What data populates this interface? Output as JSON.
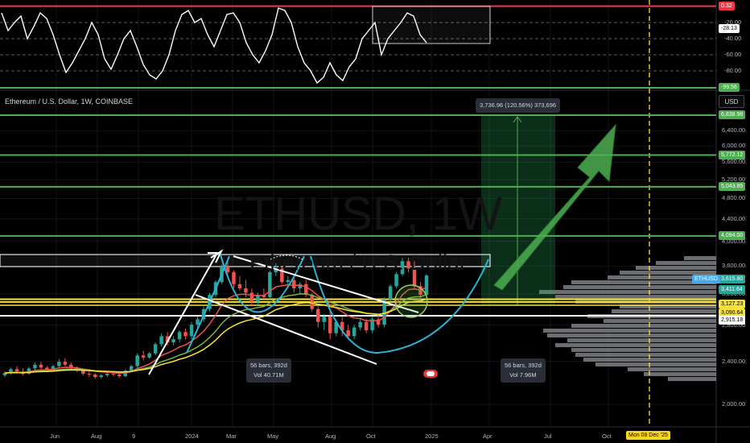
{
  "symbol_title": "Ethereum / U.S. Dollar, 1W, COINBASE",
  "currency": "USD",
  "watermark_ticker": "ETHUSD, 1W",
  "watermark_description": "Ethereum / U.S. Dollar",
  "measure_label": "3,736.96 (120.56%) 373,696",
  "range_box_left": "56 bars, 392d\nVol 40.71M",
  "range_box_right": "56 bars, 392d\nVol 7.96M",
  "crosshair_date": "Mon 08 Dec '25",
  "colors": {
    "up": "#26a69a",
    "down": "#ef5350",
    "green_line": "#4caf50",
    "yellow": "#f7e13a",
    "cyan": "#29b6d6",
    "red_line": "#f23645"
  },
  "chart_data": [
    {
      "type": "line",
      "name": "oscillator",
      "y_ticks": [
        -20,
        -40,
        -60,
        -80
      ],
      "y_tick_labels": [
        "-20.00",
        "-40.00",
        "-60.00",
        "-80.00"
      ],
      "ylim": [
        -100,
        0
      ],
      "levels": [
        {
          "value": 0.32,
          "label": "0.32",
          "color": "#f23645"
        },
        {
          "value": -99.56,
          "label": "-99.56",
          "color": "#4caf50"
        }
      ],
      "current": {
        "value": -28.13,
        "label": "-28.13"
      },
      "values": [
        -8,
        -30,
        -20,
        -12,
        -40,
        -25,
        -8,
        -15,
        -35,
        -60,
        -82,
        -70,
        -55,
        -40,
        -20,
        -35,
        -65,
        -78,
        -60,
        -40,
        -30,
        -50,
        -72,
        -85,
        -90,
        -80,
        -60,
        -30,
        -10,
        -5,
        -20,
        -15,
        -35,
        -50,
        -30,
        -10,
        -8,
        -20,
        -45,
        -60,
        -70,
        -55,
        -35,
        -2,
        -5,
        -20,
        -50,
        -70,
        -80,
        -95,
        -88,
        -70,
        -85,
        -92,
        -75,
        -65,
        -40,
        -30,
        -20,
        -60,
        -40,
        -30,
        -20,
        -8,
        -12,
        -35,
        -45
      ]
    },
    {
      "type": "candlestick",
      "name": "ETHUSD",
      "y_scale": "log",
      "y_tick_labels": [
        "6,400.00",
        "6,000.00",
        "5,600.00",
        "5,200.00",
        "4,800.00",
        "4,400.00",
        "4,000.00",
        "3,600.00",
        "3,200.00",
        "2,800.00",
        "2,400.00",
        "2,000.00"
      ],
      "y_tick_values": [
        6400,
        6000,
        5600,
        5200,
        4800,
        4400,
        4000,
        3600,
        3200,
        2800,
        2400,
        2000
      ],
      "ylim": [
        1750,
        7700
      ],
      "x_labels": [
        "Jun",
        "Aug",
        "9",
        "2024",
        "Mar",
        "May",
        "Aug",
        "Oct",
        "2025",
        "Apr",
        "Jul",
        "Oct"
      ],
      "horizontal_levels": [
        {
          "value": 6838.98,
          "label": "6,838.98",
          "color": "#4caf50"
        },
        {
          "value": 5772.12,
          "label": "5,772.12",
          "color": "#4caf50"
        },
        {
          "value": 5043.85,
          "label": "5,043.85",
          "color": "#4caf50"
        },
        {
          "value": 4094.0,
          "label": "4,094.00",
          "color": "#4caf50"
        },
        {
          "value": 3127.23,
          "label": "3,127.23",
          "color": "#f7e13a"
        },
        {
          "value": 3090.64,
          "label": "3,090.64",
          "color": "#f7e13a"
        },
        {
          "value": 2915.18,
          "label": "2,915.18",
          "color": "#ffffff"
        }
      ],
      "last_price": {
        "value": 3615.8,
        "label": "3,615.80",
        "tag": "ETHUSD"
      },
      "other_tags": [
        {
          "value": 3411.64,
          "label": "3,411.64"
        }
      ],
      "candles": [
        [
          1780,
          1830,
          1760,
          1810
        ],
        [
          1810,
          1880,
          1790,
          1860
        ],
        [
          1860,
          1900,
          1800,
          1830
        ],
        [
          1830,
          1870,
          1780,
          1800
        ],
        [
          1800,
          1890,
          1790,
          1870
        ],
        [
          1870,
          1950,
          1850,
          1920
        ],
        [
          1920,
          1960,
          1860,
          1880
        ],
        [
          1880,
          1900,
          1820,
          1850
        ],
        [
          1850,
          1920,
          1830,
          1900
        ],
        [
          1900,
          2000,
          1880,
          1960
        ],
        [
          1960,
          2010,
          1900,
          1920
        ],
        [
          1920,
          1950,
          1850,
          1880
        ],
        [
          1880,
          1900,
          1820,
          1840
        ],
        [
          1840,
          1860,
          1780,
          1800
        ],
        [
          1800,
          1830,
          1760,
          1790
        ],
        [
          1790,
          1810,
          1740,
          1760
        ],
        [
          1760,
          1800,
          1740,
          1780
        ],
        [
          1780,
          1820,
          1760,
          1800
        ],
        [
          1800,
          1830,
          1770,
          1790
        ],
        [
          1790,
          1810,
          1750,
          1770
        ],
        [
          1770,
          1860,
          1760,
          1840
        ],
        [
          1840,
          1920,
          1820,
          1900
        ],
        [
          1900,
          2080,
          1880,
          2050
        ],
        [
          2050,
          2120,
          1980,
          2020
        ],
        [
          2020,
          2100,
          2000,
          2080
        ],
        [
          2080,
          2250,
          2050,
          2220
        ],
        [
          2220,
          2400,
          2180,
          2350
        ],
        [
          2350,
          2420,
          2200,
          2250
        ],
        [
          2250,
          2350,
          2200,
          2300
        ],
        [
          2300,
          2450,
          2250,
          2420
        ],
        [
          2420,
          2480,
          2300,
          2350
        ],
        [
          2350,
          2600,
          2300,
          2550
        ],
        [
          2550,
          2700,
          2500,
          2650
        ],
        [
          2650,
          2900,
          2600,
          2850
        ],
        [
          2850,
          3200,
          2800,
          3150
        ],
        [
          3150,
          3500,
          3100,
          3450
        ],
        [
          3450,
          3900,
          3400,
          3850
        ],
        [
          3850,
          4090,
          3600,
          3700
        ],
        [
          3700,
          3750,
          3300,
          3400
        ],
        [
          3400,
          3600,
          3250,
          3300
        ],
        [
          3300,
          3500,
          3100,
          3200
        ],
        [
          3200,
          3300,
          2900,
          3000
        ],
        [
          3000,
          3200,
          2950,
          3150
        ],
        [
          3150,
          3300,
          3050,
          3100
        ],
        [
          3100,
          3750,
          3050,
          3700
        ],
        [
          3700,
          3950,
          3600,
          3800
        ],
        [
          3800,
          3850,
          3400,
          3450
        ],
        [
          3450,
          3600,
          3300,
          3500
        ],
        [
          3500,
          3550,
          3200,
          3300
        ],
        [
          3300,
          3450,
          3150,
          3400
        ],
        [
          3400,
          3500,
          3100,
          3150
        ],
        [
          3150,
          3200,
          2800,
          2850
        ],
        [
          2850,
          2900,
          2500,
          2600
        ],
        [
          2600,
          2750,
          2450,
          2700
        ],
        [
          2700,
          2800,
          2300,
          2400
        ],
        [
          2400,
          2650,
          2350,
          2600
        ],
        [
          2600,
          2700,
          2350,
          2450
        ],
        [
          2450,
          2550,
          2300,
          2350
        ],
        [
          2350,
          2550,
          2300,
          2500
        ],
        [
          2500,
          2650,
          2450,
          2600
        ],
        [
          2600,
          2650,
          2400,
          2450
        ],
        [
          2450,
          2700,
          2400,
          2650
        ],
        [
          2650,
          2750,
          2500,
          2550
        ],
        [
          2550,
          3100,
          2500,
          3050
        ],
        [
          3050,
          3400,
          3000,
          3350
        ],
        [
          3350,
          3700,
          3300,
          3650
        ],
        [
          3650,
          4090,
          3600,
          4000
        ],
        [
          4000,
          4100,
          3700,
          3800
        ],
        [
          3800,
          4000,
          3300,
          3350
        ],
        [
          3350,
          3450,
          3050,
          3150
        ],
        [
          3150,
          3650,
          3100,
          3615
        ]
      ]
    }
  ]
}
